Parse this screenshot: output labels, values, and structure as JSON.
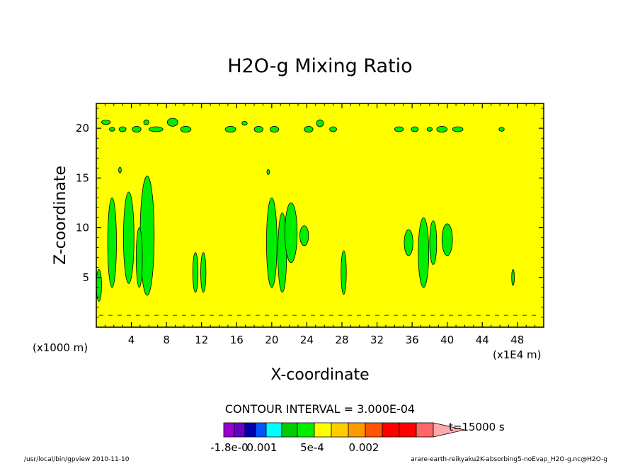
{
  "chart_data": {
    "type": "contour",
    "title": "H2O-g Mixing Ratio",
    "xlabel": "X-coordinate",
    "ylabel": "Z-coordinate",
    "x_unit_left": "(x1000 m)",
    "x_unit_right": "(x1E4 m)",
    "xlim": [
      0,
      51
    ],
    "ylim": [
      0,
      22.5
    ],
    "x_ticks": [
      4,
      8,
      12,
      16,
      20,
      24,
      28,
      32,
      36,
      40,
      44,
      48
    ],
    "y_ticks": [
      5,
      10,
      15,
      20
    ],
    "background_color": "#ffff00",
    "contour_interval_text": "CONTOUR INTERVAL = 3.000E-04",
    "time_text": "t=15000 s",
    "colorbar_labels": [
      "-1.8e-0",
      "0.001",
      "5e-4",
      "0.002"
    ],
    "colorbar_colors": [
      "#9900cc",
      "#6600cc",
      "#0000aa",
      "#0055ff",
      "#00ffff",
      "#00cc00",
      "#00ee00",
      "#ffff00",
      "#ffcc00",
      "#ff9900",
      "#ff5500",
      "#ff0000",
      "#ff0000",
      "#ff6666",
      "#ffaaaa"
    ],
    "blobs": [
      {
        "x": 0.3,
        "z": 4.2,
        "rx": 0.3,
        "rz": 1.6,
        "color": "#00ee00"
      },
      {
        "x": 1.8,
        "z": 8.5,
        "rx": 0.5,
        "rz": 4.5,
        "color": "#00ee00"
      },
      {
        "x": 3.7,
        "z": 9.0,
        "rx": 0.6,
        "rz": 4.6,
        "color": "#00ee00"
      },
      {
        "x": 5.8,
        "z": 9.2,
        "rx": 0.8,
        "rz": 6.0,
        "color": "#00ee00"
      },
      {
        "x": 4.9,
        "z": 7.0,
        "rx": 0.35,
        "rz": 3.0,
        "color": "#00ee00"
      },
      {
        "x": 2.7,
        "z": 15.8,
        "rx": 0.15,
        "rz": 0.3,
        "color": "#00ee00"
      },
      {
        "x": 11.3,
        "z": 5.5,
        "rx": 0.3,
        "rz": 2.0,
        "color": "#00ee00"
      },
      {
        "x": 12.2,
        "z": 5.5,
        "rx": 0.3,
        "rz": 2.0,
        "color": "#00ee00"
      },
      {
        "x": 20.0,
        "z": 8.5,
        "rx": 0.6,
        "rz": 4.5,
        "color": "#00ee00"
      },
      {
        "x": 21.2,
        "z": 7.5,
        "rx": 0.5,
        "rz": 4.0,
        "color": "#00ee00"
      },
      {
        "x": 22.2,
        "z": 9.5,
        "rx": 0.7,
        "rz": 3.0,
        "color": "#00ee00"
      },
      {
        "x": 23.7,
        "z": 9.2,
        "rx": 0.5,
        "rz": 1.0,
        "color": "#00ee00"
      },
      {
        "x": 19.6,
        "z": 15.6,
        "rx": 0.15,
        "rz": 0.25,
        "color": "#00ee00"
      },
      {
        "x": 28.2,
        "z": 5.5,
        "rx": 0.3,
        "rz": 2.2,
        "color": "#00ee00"
      },
      {
        "x": 35.6,
        "z": 8.5,
        "rx": 0.5,
        "rz": 1.3,
        "color": "#00ee00"
      },
      {
        "x": 37.3,
        "z": 7.5,
        "rx": 0.6,
        "rz": 3.5,
        "color": "#00ee00"
      },
      {
        "x": 38.4,
        "z": 8.5,
        "rx": 0.4,
        "rz": 2.2,
        "color": "#00ee00"
      },
      {
        "x": 40.0,
        "z": 8.8,
        "rx": 0.6,
        "rz": 1.6,
        "color": "#00ee00"
      },
      {
        "x": 47.5,
        "z": 5.0,
        "rx": 0.15,
        "rz": 0.8,
        "color": "#00ee00"
      },
      {
        "x": 1.1,
        "z": 20.6,
        "rx": 0.5,
        "rz": 0.22,
        "color": "#00ee00"
      },
      {
        "x": 1.8,
        "z": 19.9,
        "rx": 0.3,
        "rz": 0.2,
        "color": "#00ee00"
      },
      {
        "x": 3.0,
        "z": 19.9,
        "rx": 0.4,
        "rz": 0.25,
        "color": "#00ee00"
      },
      {
        "x": 4.6,
        "z": 19.9,
        "rx": 0.5,
        "rz": 0.3,
        "color": "#00ee00"
      },
      {
        "x": 5.7,
        "z": 20.6,
        "rx": 0.3,
        "rz": 0.25,
        "color": "#00ee00"
      },
      {
        "x": 6.8,
        "z": 19.9,
        "rx": 0.8,
        "rz": 0.25,
        "color": "#00ee00"
      },
      {
        "x": 8.7,
        "z": 20.6,
        "rx": 0.6,
        "rz": 0.4,
        "color": "#00ee00"
      },
      {
        "x": 10.2,
        "z": 19.9,
        "rx": 0.6,
        "rz": 0.3,
        "color": "#00ee00"
      },
      {
        "x": 15.3,
        "z": 19.9,
        "rx": 0.6,
        "rz": 0.3,
        "color": "#00ee00"
      },
      {
        "x": 16.9,
        "z": 20.5,
        "rx": 0.3,
        "rz": 0.2,
        "color": "#00ee00"
      },
      {
        "x": 18.5,
        "z": 19.9,
        "rx": 0.5,
        "rz": 0.3,
        "color": "#00ee00"
      },
      {
        "x": 20.3,
        "z": 19.9,
        "rx": 0.5,
        "rz": 0.3,
        "color": "#00ee00"
      },
      {
        "x": 24.2,
        "z": 19.9,
        "rx": 0.5,
        "rz": 0.3,
        "color": "#00ee00"
      },
      {
        "x": 25.5,
        "z": 20.5,
        "rx": 0.4,
        "rz": 0.35,
        "color": "#00ee00"
      },
      {
        "x": 27.0,
        "z": 19.9,
        "rx": 0.4,
        "rz": 0.25,
        "color": "#00ee00"
      },
      {
        "x": 34.5,
        "z": 19.9,
        "rx": 0.5,
        "rz": 0.25,
        "color": "#00ee00"
      },
      {
        "x": 36.3,
        "z": 19.9,
        "rx": 0.4,
        "rz": 0.25,
        "color": "#00ee00"
      },
      {
        "x": 38.0,
        "z": 19.9,
        "rx": 0.3,
        "rz": 0.2,
        "color": "#00ee00"
      },
      {
        "x": 39.4,
        "z": 19.9,
        "rx": 0.6,
        "rz": 0.3,
        "color": "#00ee00"
      },
      {
        "x": 41.2,
        "z": 19.9,
        "rx": 0.6,
        "rz": 0.25,
        "color": "#00ee00"
      },
      {
        "x": 46.2,
        "z": 19.9,
        "rx": 0.3,
        "rz": 0.2,
        "color": "#00ee00"
      }
    ]
  },
  "footer": {
    "left": "/usr/local/bin/gpview  2010-11-10",
    "right": "arare-earth-reikyaku2K-absorbing5-noEvap_H2O-g.nc@H2O-g"
  }
}
